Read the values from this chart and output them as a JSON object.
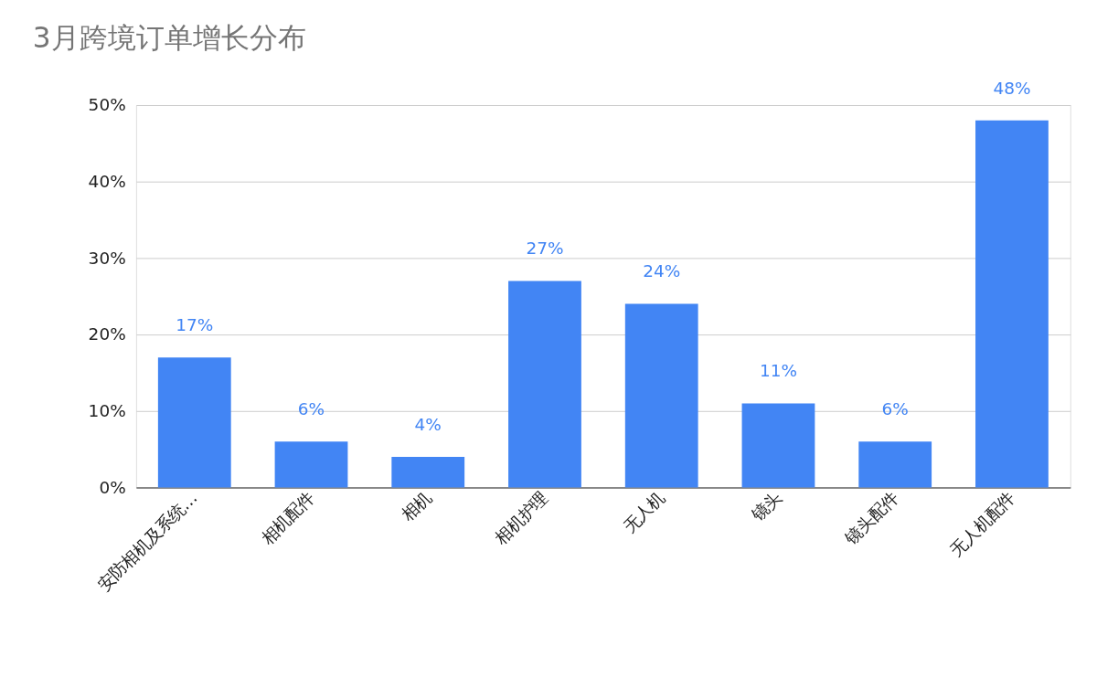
{
  "chart_data": {
    "type": "bar",
    "title": "3月跨境订单增长分布",
    "categories": [
      "安防相机及系统…",
      "相机配件",
      "相机",
      "相机护理",
      "无人机",
      "镜头",
      "镜头配件",
      "无人机配件"
    ],
    "values": [
      17,
      6,
      4,
      27,
      24,
      11,
      6,
      48
    ],
    "value_labels": [
      "17%",
      "6%",
      "4%",
      "27%",
      "24%",
      "11%",
      "6%",
      "48%"
    ],
    "color": "#4285f4",
    "ylim": [
      0,
      50
    ],
    "yticks": [
      {
        "value": 0,
        "label": "0%"
      },
      {
        "value": 10,
        "label": "10%"
      },
      {
        "value": 20,
        "label": "20%"
      },
      {
        "value": 30,
        "label": "30%"
      },
      {
        "value": 40,
        "label": "40%"
      },
      {
        "value": 50,
        "label": "50%"
      }
    ],
    "grid": "y"
  }
}
